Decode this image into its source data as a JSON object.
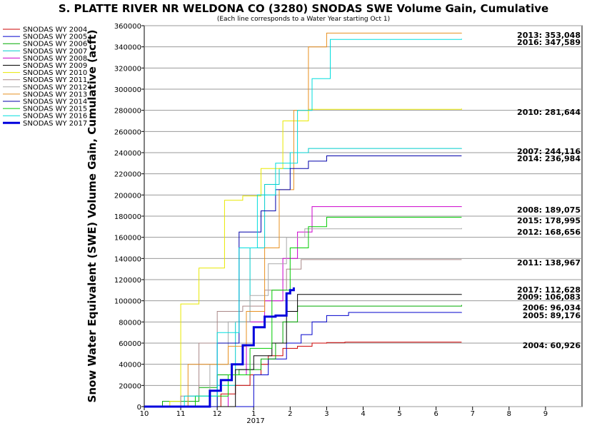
{
  "chart_data": {
    "type": "line",
    "title": "S. PLATTE RIVER NR WELDONA CO (3280) SNODAS SWE Volume Gain, Cumulative",
    "subtitle": "(Each line corresponds to a Water Year starting Oct 1)",
    "ylabel": "Snow Water Equivalent (SWE) Volume Gain, Cumulative (acft)",
    "xlabel": "",
    "x_ticks": [
      "10",
      "11",
      "12",
      "1",
      "2",
      "3",
      "4",
      "5",
      "6",
      "7",
      "8",
      "9"
    ],
    "x_year_label": "2017",
    "xlim": [
      0,
      12
    ],
    "ylim": [
      0,
      360000
    ],
    "y_ticks": [
      "0",
      "20000",
      "40000",
      "60000",
      "80000",
      "100000",
      "120000",
      "140000",
      "160000",
      "180000",
      "200000",
      "220000",
      "240000",
      "260000",
      "280000",
      "300000",
      "320000",
      "340000",
      "360000"
    ],
    "grid": "horizontal",
    "legend_position": "left",
    "series": [
      {
        "name": "SNODAS WY 2004",
        "color": "#cc0000",
        "end_label": "2004: 60,926",
        "end_value": 60926,
        "x": [
          0,
          1.8,
          2.1,
          2.5,
          2.9,
          3.2,
          3.4,
          3.8,
          4.2,
          4.6,
          5.0,
          5.5,
          8.7
        ],
        "y": [
          0,
          0,
          12000,
          20000,
          30000,
          40000,
          48000,
          55000,
          57000,
          60000,
          60500,
          60926,
          60926
        ]
      },
      {
        "name": "SNODAS WY 2005",
        "color": "#0000cc",
        "end_label": "2005: 89,176",
        "end_value": 89176,
        "x": [
          0,
          2.6,
          3.0,
          3.4,
          3.9,
          4.3,
          4.6,
          5.0,
          5.6,
          8.7
        ],
        "y": [
          0,
          0,
          30000,
          45000,
          60000,
          68000,
          80000,
          86000,
          89000,
          89176
        ]
      },
      {
        "name": "SNODAS WY 2006",
        "color": "#00aa00",
        "end_label": "2006: 96,034",
        "end_value": 96034,
        "x": [
          0,
          0.5,
          1.5,
          2.0,
          2.6,
          3.2,
          3.6,
          3.8,
          4.2,
          8.7
        ],
        "y": [
          0,
          5000,
          18000,
          30000,
          35000,
          45000,
          60000,
          80000,
          95000,
          96034
        ]
      },
      {
        "name": "SNODAS WY 2007",
        "color": "#00cccc",
        "end_label": "2007: 244,116",
        "end_value": 244116,
        "x": [
          0,
          1.5,
          2.0,
          2.5,
          2.9,
          3.3,
          3.7,
          4.0,
          4.5,
          8.7
        ],
        "y": [
          0,
          0,
          20000,
          80000,
          150000,
          210000,
          225000,
          240000,
          244000,
          244116
        ]
      },
      {
        "name": "SNODAS WY 2008",
        "color": "#cc00cc",
        "end_label": "2008: 189,075",
        "end_value": 189075,
        "x": [
          0,
          1.6,
          2.3,
          2.8,
          3.3,
          3.8,
          4.2,
          4.6,
          8.7
        ],
        "y": [
          0,
          0,
          30000,
          80000,
          100000,
          140000,
          165000,
          189000,
          189075
        ]
      },
      {
        "name": "SNODAS WY 2009",
        "color": "#000000",
        "end_label": "2009: 106,083",
        "end_value": 106083,
        "x": [
          0,
          1.8,
          2.5,
          3.0,
          3.5,
          3.9,
          4.2,
          8.7
        ],
        "y": [
          0,
          0,
          35000,
          48000,
          60000,
          90000,
          106000,
          106083
        ]
      },
      {
        "name": "SNODAS WY 2010",
        "color": "#e8e800",
        "end_label": "2010: 281,644",
        "end_value": 281644,
        "x": [
          0,
          0.7,
          1.0,
          1.5,
          2.2,
          2.7,
          3.2,
          3.8,
          4.5,
          8.7
        ],
        "y": [
          0,
          5000,
          97000,
          131000,
          195000,
          199000,
          225000,
          270000,
          281000,
          281644
        ]
      },
      {
        "name": "SNODAS WY 2011",
        "color": "#aa8888",
        "end_label": "2011: 138,967",
        "end_value": 138967,
        "x": [
          0,
          1.0,
          1.5,
          2.0,
          2.7,
          3.3,
          3.9,
          4.3,
          8.7
        ],
        "y": [
          0,
          10000,
          60000,
          90000,
          95000,
          110000,
          130000,
          138967,
          138967
        ]
      },
      {
        "name": "SNODAS WY 2012",
        "color": "#aaaaaa",
        "end_label": "2012: 168,656",
        "end_value": 168656,
        "x": [
          0,
          1.2,
          1.8,
          2.3,
          2.9,
          3.4,
          3.9,
          4.4,
          8.7
        ],
        "y": [
          0,
          10000,
          40000,
          80000,
          105000,
          135000,
          160000,
          168000,
          168656
        ]
      },
      {
        "name": "SNODAS WY 2013",
        "color": "#e89020",
        "end_label": "2013: 353,048",
        "end_value": 353048,
        "x": [
          0,
          1.2,
          2.3,
          2.8,
          3.3,
          3.7,
          4.1,
          4.5,
          5.0,
          8.7
        ],
        "y": [
          0,
          40000,
          57000,
          90000,
          150000,
          205000,
          280000,
          340000,
          353000,
          353048
        ]
      },
      {
        "name": "SNODAS WY 2014",
        "color": "#0000aa",
        "end_label": "2014: 236,984",
        "end_value": 236984,
        "x": [
          0,
          1.5,
          2.0,
          2.6,
          3.2,
          3.6,
          4.0,
          4.5,
          5.0,
          8.7
        ],
        "y": [
          0,
          0,
          60000,
          165000,
          185000,
          205000,
          225000,
          232000,
          236984,
          236984
        ]
      },
      {
        "name": "SNODAS WY 2015",
        "color": "#00cc00",
        "end_label": "2015: 178,995",
        "end_value": 178995,
        "x": [
          0,
          1.4,
          2.3,
          2.9,
          3.5,
          4.0,
          4.5,
          5.0,
          8.7
        ],
        "y": [
          0,
          10000,
          30000,
          55000,
          110000,
          150000,
          170000,
          179000,
          178995
        ]
      },
      {
        "name": "SNODAS WY 2016",
        "color": "#00dddd",
        "end_label": "2016: 347,589",
        "end_value": 347589,
        "x": [
          0,
          1.1,
          2.0,
          2.6,
          3.1,
          3.6,
          4.2,
          4.6,
          5.1,
          8.7
        ],
        "y": [
          0,
          10000,
          70000,
          150000,
          200000,
          230000,
          280000,
          310000,
          347000,
          347589
        ]
      },
      {
        "name": "SNODAS WY 2017",
        "color": "#0000dd",
        "end_label": "2017: 112,628",
        "end_value": 112628,
        "x": [
          0,
          1.5,
          1.8,
          2.1,
          2.4,
          2.7,
          3.0,
          3.3,
          3.6,
          3.9,
          4.0,
          4.1
        ],
        "y": [
          0,
          0,
          15000,
          25000,
          40000,
          58000,
          75000,
          85000,
          86000,
          107000,
          110000,
          112628
        ]
      }
    ]
  }
}
